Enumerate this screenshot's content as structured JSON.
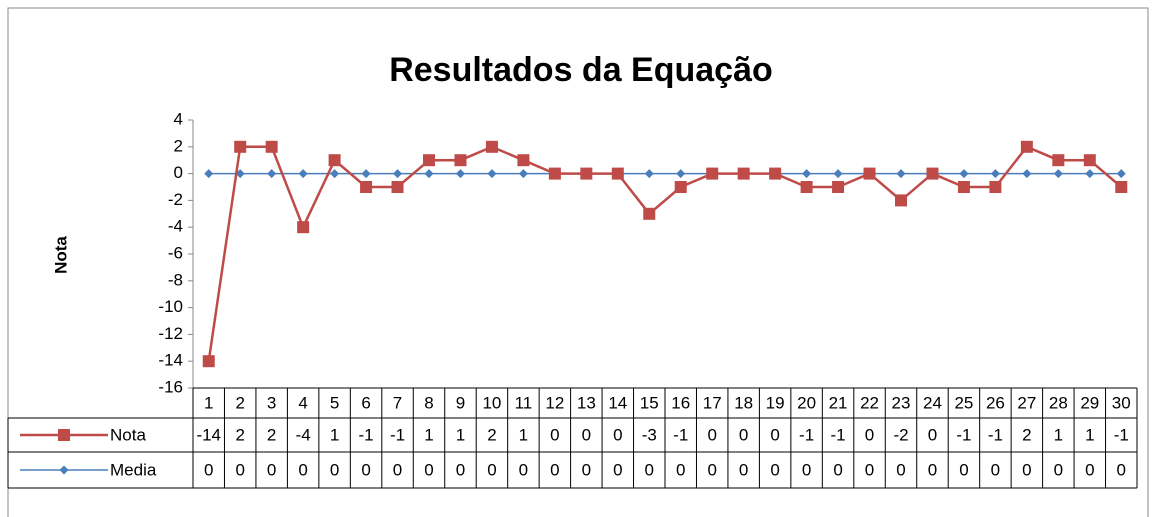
{
  "chart_data": {
    "type": "line",
    "title": "Resultados da Equação",
    "y_label": "Nota",
    "categories": [
      "1",
      "2",
      "3",
      "4",
      "5",
      "6",
      "7",
      "8",
      "9",
      "10",
      "11",
      "12",
      "13",
      "14",
      "15",
      "16",
      "17",
      "18",
      "19",
      "20",
      "21",
      "22",
      "23",
      "24",
      "25",
      "26",
      "27",
      "28",
      "29",
      "30"
    ],
    "series": [
      {
        "name": "Nota",
        "color": "#be4b48",
        "marker": "square",
        "values": [
          -14,
          2,
          2,
          -4,
          1,
          -1,
          -1,
          1,
          1,
          2,
          1,
          0,
          0,
          0,
          -3,
          -1,
          0,
          0,
          0,
          -1,
          -1,
          0,
          -2,
          0,
          -1,
          -1,
          2,
          1,
          1,
          -1
        ]
      },
      {
        "name": "Media",
        "color": "#4a7ebb",
        "marker": "diamond",
        "values": [
          0,
          0,
          0,
          0,
          0,
          0,
          0,
          0,
          0,
          0,
          0,
          0,
          0,
          0,
          0,
          0,
          0,
          0,
          0,
          0,
          0,
          0,
          0,
          0,
          0,
          0,
          0,
          0,
          0,
          0
        ]
      }
    ],
    "ylim": [
      -16,
      4
    ],
    "yticks": [
      4,
      2,
      0,
      -2,
      -4,
      -6,
      -8,
      -10,
      -12,
      -14,
      -16
    ],
    "grid": false,
    "data_table": true
  }
}
